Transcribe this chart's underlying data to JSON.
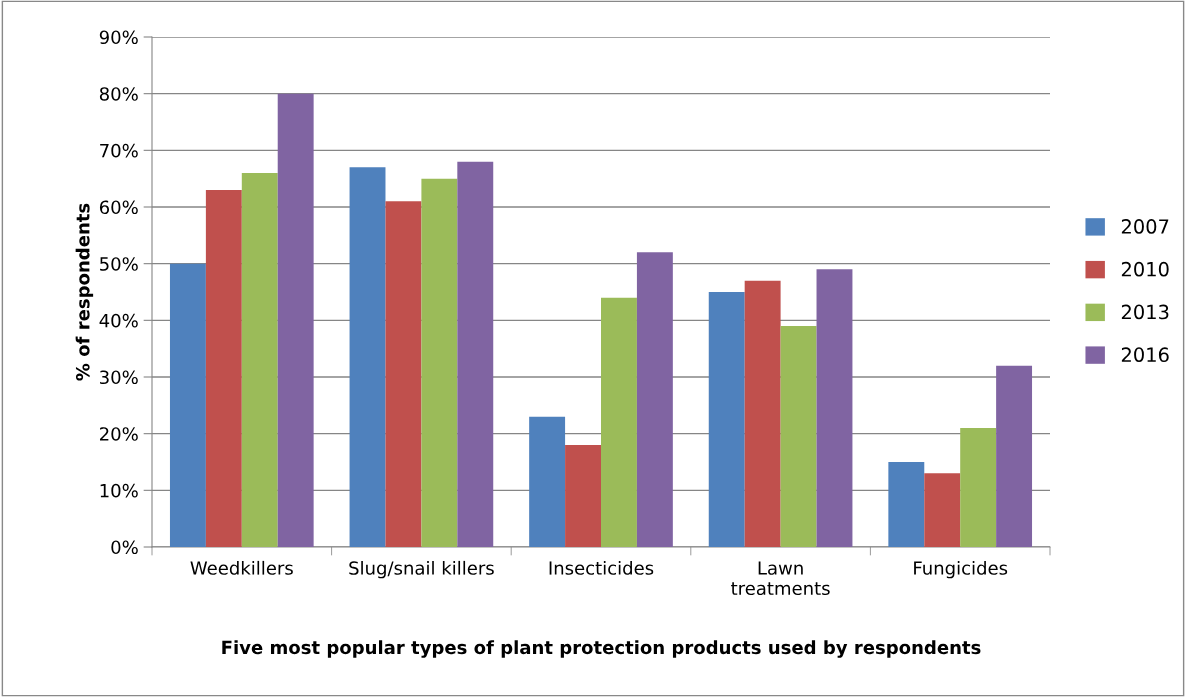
{
  "chart_data": {
    "type": "bar",
    "categories": [
      "Weedkillers",
      "Slug/snail killers",
      "Insecticides",
      "Lawn\ntreatments",
      "Fungicides"
    ],
    "series": [
      {
        "name": "2007",
        "color": "#4f81bd",
        "values": [
          50,
          67,
          23,
          45,
          15
        ]
      },
      {
        "name": "2010",
        "color": "#c0504d",
        "values": [
          63,
          61,
          18,
          47,
          13
        ]
      },
      {
        "name": "2013",
        "color": "#9bbb59",
        "values": [
          66,
          65,
          44,
          39,
          21
        ]
      },
      {
        "name": "2016",
        "color": "#8064a2",
        "values": [
          80,
          68,
          52,
          49,
          32
        ]
      }
    ],
    "xlabel": "Five most popular types of plant protection products used by respondents",
    "ylabel": "% of respondents",
    "ylim": [
      0,
      90
    ],
    "yticks": [
      {
        "value": 0,
        "label": "0%"
      },
      {
        "value": 10,
        "label": "10%"
      },
      {
        "value": 20,
        "label": "20%"
      },
      {
        "value": 30,
        "label": "30%"
      },
      {
        "value": 40,
        "label": "40%"
      },
      {
        "value": 50,
        "label": "50%"
      },
      {
        "value": 60,
        "label": "60%"
      },
      {
        "value": 70,
        "label": "70%"
      },
      {
        "value": 80,
        "label": "80%"
      },
      {
        "value": 90,
        "label": "90%"
      }
    ],
    "grid": "y",
    "legend": "right"
  }
}
